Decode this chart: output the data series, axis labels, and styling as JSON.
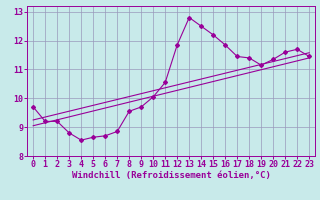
{
  "xlabel": "Windchill (Refroidissement éolien,°C)",
  "background_color": "#c8eaea",
  "line_color": "#990099",
  "grid_color": "#9999bb",
  "xlim": [
    -0.5,
    23.5
  ],
  "ylim": [
    8.0,
    13.2
  ],
  "yticks": [
    8,
    9,
    10,
    11,
    12,
    13
  ],
  "xticks": [
    0,
    1,
    2,
    3,
    4,
    5,
    6,
    7,
    8,
    9,
    10,
    11,
    12,
    13,
    14,
    15,
    16,
    17,
    18,
    19,
    20,
    21,
    22,
    23
  ],
  "curve_x": [
    0,
    1,
    2,
    3,
    4,
    5,
    6,
    7,
    8,
    9,
    10,
    11,
    12,
    13,
    14,
    15,
    16,
    17,
    18,
    19,
    20,
    21,
    22,
    23
  ],
  "curve_y": [
    9.7,
    9.2,
    9.2,
    8.8,
    8.55,
    8.65,
    8.7,
    8.85,
    9.55,
    9.7,
    10.05,
    10.55,
    11.85,
    12.8,
    12.5,
    12.2,
    11.85,
    11.45,
    11.4,
    11.15,
    11.35,
    11.6,
    11.7,
    11.45
  ],
  "reg_line1_x": [
    0,
    23
  ],
  "reg_line1_y": [
    9.05,
    11.4
  ],
  "reg_line2_x": [
    0,
    23
  ],
  "reg_line2_y": [
    9.25,
    11.58
  ],
  "font_size": 6.5,
  "tick_label_size": 6.0
}
